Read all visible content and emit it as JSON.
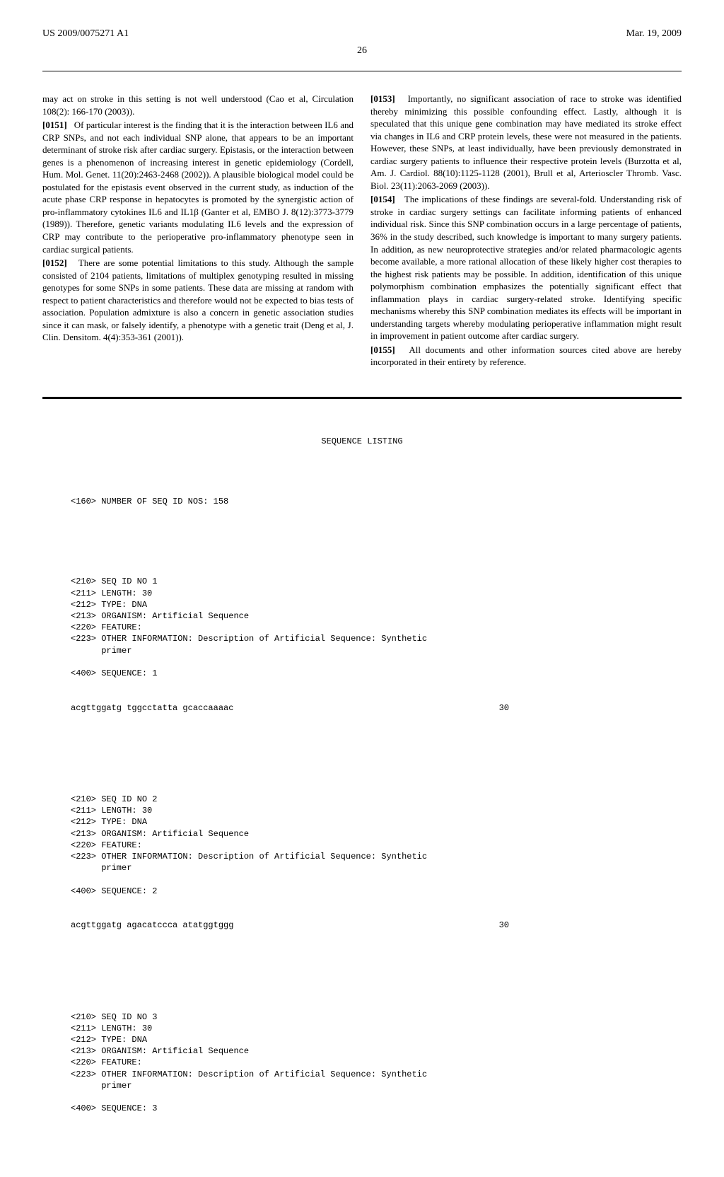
{
  "header": {
    "pub_no": "US 2009/0075271 A1",
    "date": "Mar. 19, 2009",
    "page": "26"
  },
  "column_left": {
    "p0": "may act on stroke in this setting is not well understood (Cao et al, Circulation 108(2): 166-170 (2003)).",
    "p1_label": "[0151]",
    "p1": "Of particular interest is the finding that it is the interaction between IL6 and CRP SNPs, and not each individual SNP alone, that appears to be an important determinant of stroke risk after cardiac surgery. Epistasis, or the interaction between genes is a phenomenon of increasing interest in genetic epidemiology (Cordell, Hum. Mol. Genet. 11(20):2463-2468 (2002)). A plausible biological model could be postulated for the epistasis event observed in the current study, as induction of the acute phase CRP response in hepatocytes is promoted by the synergistic action of pro-inflammatory cytokines IL6 and IL1β (Ganter et al, EMBO J. 8(12):3773-3779 (1989)). Therefore, genetic variants modulating IL6 levels and the expression of CRP may contribute to the perioperative pro-inflammatory phenotype seen in cardiac surgical patients.",
    "p2_label": "[0152]",
    "p2": "There are some potential limitations to this study. Although the sample consisted of 2104 patients, limitations of multiplex genotyping resulted in missing genotypes for some SNPs in some patients. These data are missing at random with respect to patient characteristics and therefore would not be expected to bias tests of association. Population admixture is also a concern in genetic association studies since it can mask, or falsely identify, a phenotype with a genetic trait (Deng et al, J. Clin. Densitom. 4(4):353-361 (2001))."
  },
  "column_right": {
    "p3_label": "[0153]",
    "p3": "Importantly, no significant association of race to stroke was identified thereby minimizing this possible confounding effect. Lastly, although it is speculated that this unique gene combination may have mediated its stroke effect via changes in IL6 and CRP protein levels, these were not measured in the patients. However, these SNPs, at least individually, have been previously demonstrated in cardiac surgery patients to influence their respective protein levels (Burzotta et al, Am. J. Cardiol. 88(10):1125-1128 (2001), Brull et al, Arterioscler Thromb. Vasc. Biol. 23(11):2063-2069 (2003)).",
    "p4_label": "[0154]",
    "p4": "The implications of these findings are several-fold. Understanding risk of stroke in cardiac surgery settings can facilitate informing patients of enhanced individual risk. Since this SNP combination occurs in a large percentage of patients, 36% in the study described, such knowledge is important to many surgery patients. In addition, as new neuroprotective strategies and/or related pharmacologic agents become available, a more rational allocation of these likely higher cost therapies to the highest risk patients may be possible. In addition, identification of this unique polymorphism combination emphasizes the potentially significant effect that inflammation plays in cardiac surgery-related stroke. Identifying specific mechanisms whereby this SNP combination mediates its effects will be important in understanding targets whereby modulating perioperative inflammation might result in improvement in patient outcome after cardiac surgery.",
    "p5_label": "[0155]",
    "p5": "All documents and other information sources cited above are hereby incorporated in their entirety by reference."
  },
  "sequence": {
    "title": "SEQUENCE LISTING",
    "num_line": "<160> NUMBER OF SEQ ID NOS: 158",
    "entries": [
      {
        "h1": "<210> SEQ ID NO 1",
        "h2": "<211> LENGTH: 30",
        "h3": "<212> TYPE: DNA",
        "h4": "<213> ORGANISM: Artificial Sequence",
        "h5": "<220> FEATURE:",
        "h6": "<223> OTHER INFORMATION: Description of Artificial Sequence: Synthetic",
        "h6b": "      primer",
        "h7": "<400> SEQUENCE: 1",
        "seq": "acgttggatg tggcctatta gcaccaaaac",
        "len": "30"
      },
      {
        "h1": "<210> SEQ ID NO 2",
        "h2": "<211> LENGTH: 30",
        "h3": "<212> TYPE: DNA",
        "h4": "<213> ORGANISM: Artificial Sequence",
        "h5": "<220> FEATURE:",
        "h6": "<223> OTHER INFORMATION: Description of Artificial Sequence: Synthetic",
        "h6b": "      primer",
        "h7": "<400> SEQUENCE: 2",
        "seq": "acgttggatg agacatccca atatggtggg",
        "len": "30"
      },
      {
        "h1": "<210> SEQ ID NO 3",
        "h2": "<211> LENGTH: 30",
        "h3": "<212> TYPE: DNA",
        "h4": "<213> ORGANISM: Artificial Sequence",
        "h5": "<220> FEATURE:",
        "h6": "<223> OTHER INFORMATION: Description of Artificial Sequence: Synthetic",
        "h6b": "      primer",
        "h7": "<400> SEQUENCE: 3"
      }
    ]
  }
}
